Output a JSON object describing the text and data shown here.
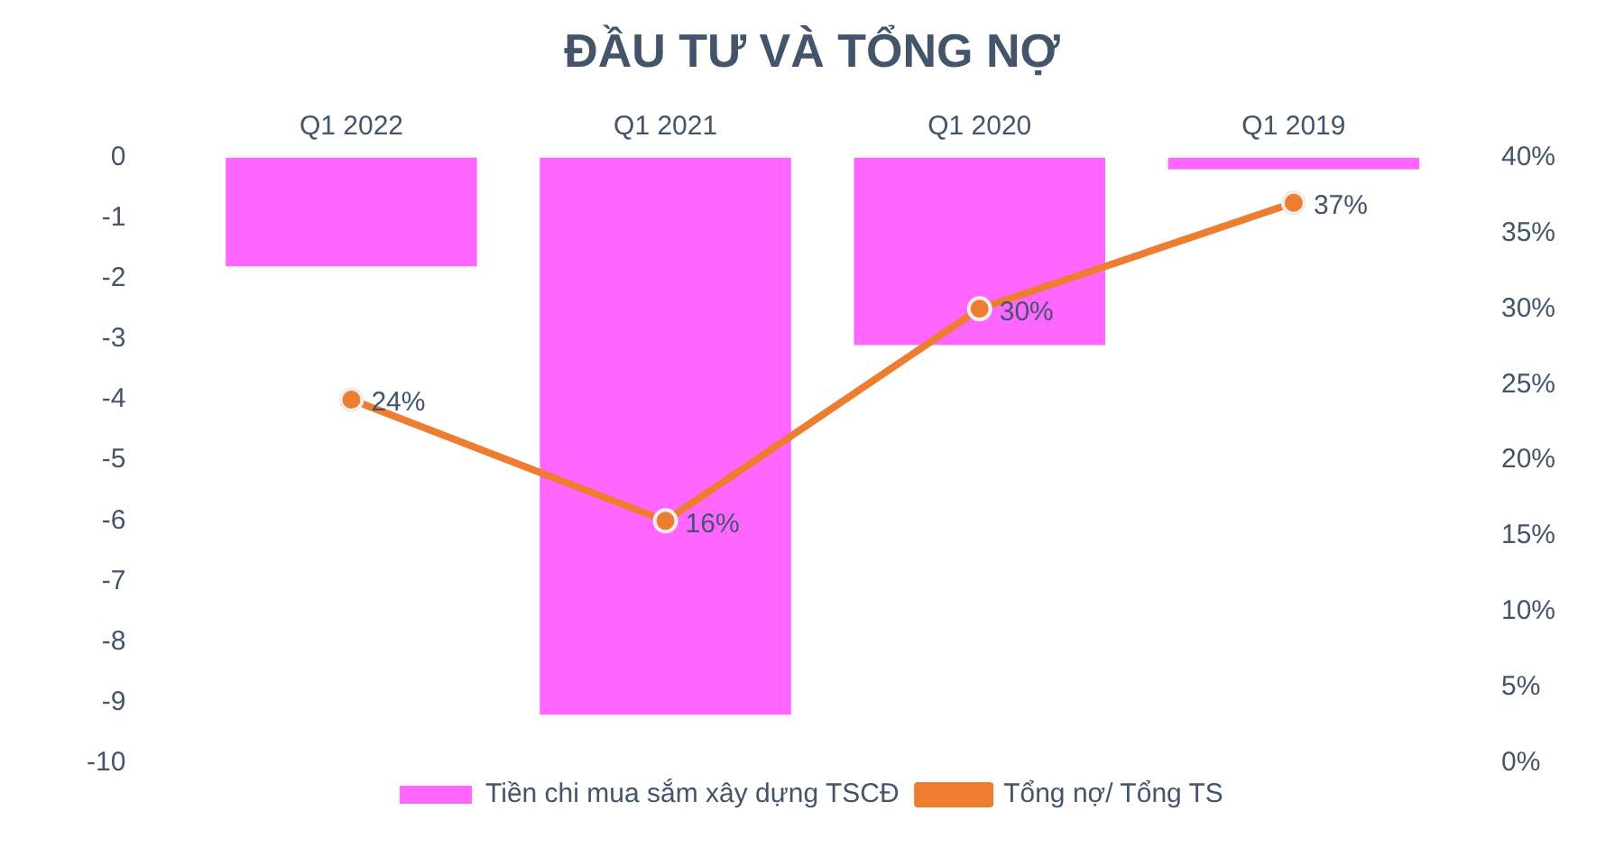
{
  "chart_data": {
    "type": "bar",
    "title": "ĐẦU TƯ VÀ TỔNG NỢ",
    "categories": [
      "Q1 2022",
      "Q1 2021",
      "Q1 2020",
      "Q1 2019"
    ],
    "series": [
      {
        "name": "Tiền chi mua sắm xây dựng TSCĐ",
        "color": "#ff66ff",
        "values": [
          -1.8,
          -9.2,
          -3.1,
          -0.2
        ]
      },
      {
        "name": "Tổng nợ/ Tổng TS",
        "type": "line",
        "axis": "y2",
        "color": "#ed7d31",
        "values": [
          24,
          16,
          30,
          37
        ],
        "value_labels": [
          "24%",
          "16%",
          "30%",
          "37%"
        ]
      }
    ],
    "ylim": [
      -10,
      0
    ],
    "yticks": [
      0,
      -1,
      -2,
      -3,
      -4,
      -5,
      -6,
      -7,
      -8,
      -9,
      -10
    ],
    "y2lim": [
      0,
      40
    ],
    "y2ticks": [
      {
        "value": 0,
        "label": "0%"
      },
      {
        "value": 5,
        "label": "5%"
      },
      {
        "value": 10,
        "label": "10%"
      },
      {
        "value": 15,
        "label": "15%"
      },
      {
        "value": 20,
        "label": "20%"
      },
      {
        "value": 25,
        "label": "25%"
      },
      {
        "value": 30,
        "label": "30%"
      },
      {
        "value": 35,
        "label": "35%"
      },
      {
        "value": 40,
        "label": "40%"
      }
    ],
    "grid": false,
    "legend": "bottom",
    "marker": "circle",
    "line_style": "solid"
  }
}
